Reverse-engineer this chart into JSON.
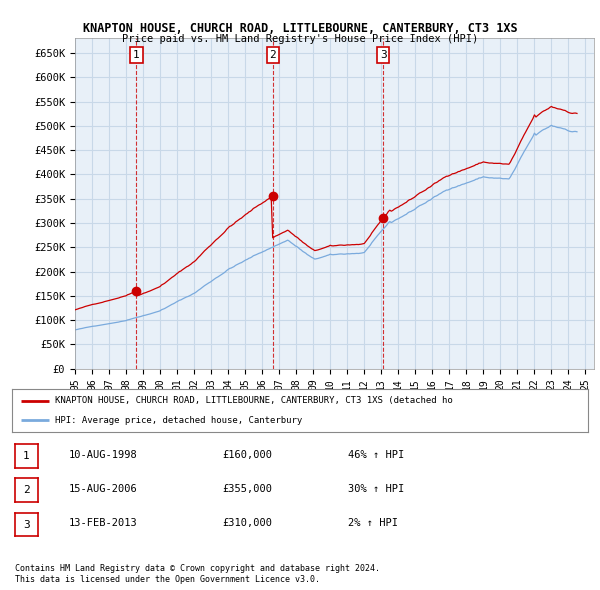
{
  "title_line1": "KNAPTON HOUSE, CHURCH ROAD, LITTLEBOURNE, CANTERBURY, CT3 1XS",
  "title_line2": "Price paid vs. HM Land Registry's House Price Index (HPI)",
  "xlim": [
    1995.0,
    2025.5
  ],
  "ylim": [
    0,
    680000
  ],
  "yticks": [
    0,
    50000,
    100000,
    150000,
    200000,
    250000,
    300000,
    350000,
    400000,
    450000,
    500000,
    550000,
    600000,
    650000
  ],
  "ytick_labels": [
    "£0",
    "£50K",
    "£100K",
    "£150K",
    "£200K",
    "£250K",
    "£300K",
    "£350K",
    "£400K",
    "£450K",
    "£500K",
    "£550K",
    "£600K",
    "£650K"
  ],
  "xtick_years": [
    1995,
    1996,
    1997,
    1998,
    1999,
    2000,
    2001,
    2002,
    2003,
    2004,
    2005,
    2006,
    2007,
    2008,
    2009,
    2010,
    2011,
    2012,
    2013,
    2014,
    2015,
    2016,
    2017,
    2018,
    2019,
    2020,
    2021,
    2022,
    2023,
    2024,
    2025
  ],
  "xtick_labels": [
    "95",
    "96",
    "97",
    "98",
    "99",
    "00",
    "01",
    "02",
    "03",
    "04",
    "05",
    "06",
    "07",
    "08",
    "09",
    "10",
    "11",
    "12",
    "13",
    "14",
    "15",
    "16",
    "17",
    "18",
    "19",
    "20",
    "21",
    "22",
    "23",
    "24",
    "25"
  ],
  "sale_dates": [
    1998.608,
    2006.617,
    2013.12
  ],
  "sale_prices": [
    160000,
    355000,
    310000
  ],
  "sale_labels": [
    "1",
    "2",
    "3"
  ],
  "legend_red": "KNAPTON HOUSE, CHURCH ROAD, LITTLEBOURNE, CANTERBURY, CT3 1XS (detached ho",
  "legend_blue": "HPI: Average price, detached house, Canterbury",
  "table_rows": [
    {
      "num": "1",
      "date": "10-AUG-1998",
      "price": "£160,000",
      "hpi": "46% ↑ HPI"
    },
    {
      "num": "2",
      "date": "15-AUG-2006",
      "price": "£355,000",
      "hpi": "30% ↑ HPI"
    },
    {
      "num": "3",
      "date": "13-FEB-2013",
      "price": "£310,000",
      "hpi": "2% ↑ HPI"
    }
  ],
  "footnote1": "Contains HM Land Registry data © Crown copyright and database right 2024.",
  "footnote2": "This data is licensed under the Open Government Licence v3.0.",
  "bg_color": "#ffffff",
  "grid_color": "#c8d8e8",
  "plot_bg": "#e8f0f8",
  "red_color": "#cc0000",
  "blue_color": "#7aaadd"
}
